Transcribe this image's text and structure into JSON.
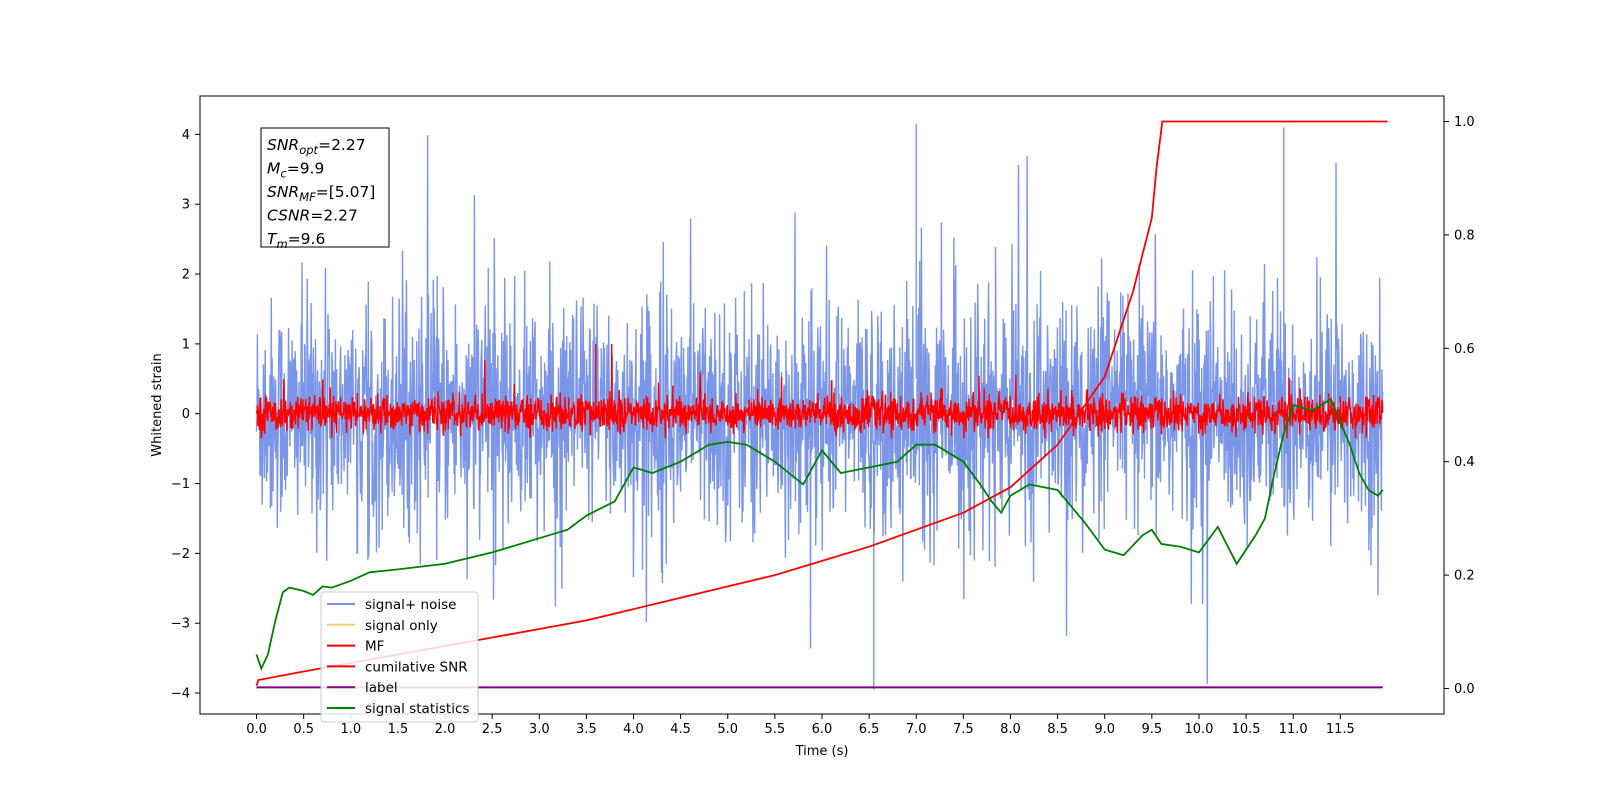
{
  "chart_data": {
    "type": "line",
    "xlabel": "Time (s)",
    "ylabel": "Whitened strain",
    "xlim": [
      -0.6,
      12.6
    ],
    "ylim": [
      -4.3,
      4.55
    ],
    "y2lim": [
      -0.045,
      1.045
    ],
    "x_ticks": [
      "0.0",
      "0.5",
      "1.0",
      "1.5",
      "2.0",
      "2.5",
      "3.0",
      "3.5",
      "4.0",
      "4.5",
      "5.0",
      "5.5",
      "6.0",
      "6.5",
      "7.0",
      "7.5",
      "8.0",
      "8.5",
      "9.0",
      "9.5",
      "10.0",
      "10.5",
      "11.0",
      "11.5"
    ],
    "y_ticks": [
      "4",
      "3",
      "2",
      "1",
      "0",
      "−1",
      "−2",
      "−3",
      "−4"
    ],
    "y2_ticks": [
      "1.0",
      "0.8",
      "0.6",
      "0.4",
      "0.2",
      "0.0"
    ],
    "grid": false,
    "legend_position": "lower-left",
    "colors": {
      "noise": "#7b96e8",
      "signal": "#f5c97a",
      "mf": "#ff0000",
      "csnr": "#ff0000",
      "label": "#800080",
      "stat": "#008000"
    },
    "series": [
      {
        "name": "signal+ noise",
        "style": "noise",
        "center": 0.0,
        "band": [
          -1.2,
          1.2
        ],
        "peaks": [
          -3.95,
          4.2
        ]
      },
      {
        "name": "signal only",
        "style": "signal",
        "values": []
      },
      {
        "name": "MF",
        "style": "mf",
        "center": 0.0,
        "band": [
          -0.3,
          0.4
        ],
        "peaks": [
          -0.35,
          1.0
        ]
      },
      {
        "name": "cumilative SNR",
        "axis": "right",
        "x": [
          0.0,
          0.02,
          0.5,
          1.0,
          1.5,
          2.0,
          2.5,
          3.0,
          3.5,
          4.0,
          4.5,
          5.0,
          5.5,
          6.0,
          6.5,
          7.0,
          7.5,
          8.0,
          8.5,
          9.0,
          9.3,
          9.5,
          9.55,
          9.6,
          9.61,
          12.0
        ],
        "values": [
          0.005,
          0.015,
          0.03,
          0.045,
          0.06,
          0.075,
          0.09,
          0.105,
          0.12,
          0.14,
          0.16,
          0.18,
          0.2,
          0.225,
          0.25,
          0.28,
          0.31,
          0.355,
          0.43,
          0.55,
          0.7,
          0.83,
          0.92,
          0.985,
          1.0,
          1.0
        ]
      },
      {
        "name": "label",
        "axis": "right",
        "x": [
          0.0,
          11.95
        ],
        "values": [
          0.002,
          0.002
        ]
      },
      {
        "name": "signal statistics",
        "axis": "right",
        "x": [
          0.0,
          0.05,
          0.12,
          0.2,
          0.28,
          0.35,
          0.5,
          0.6,
          0.7,
          0.8,
          1.0,
          1.2,
          1.5,
          2.0,
          2.5,
          3.0,
          3.3,
          3.5,
          3.8,
          4.0,
          4.2,
          4.5,
          4.8,
          5.0,
          5.2,
          5.5,
          5.8,
          6.0,
          6.2,
          6.5,
          6.8,
          7.0,
          7.2,
          7.5,
          7.7,
          7.8,
          7.9,
          8.0,
          8.2,
          8.5,
          8.8,
          9.0,
          9.2,
          9.4,
          9.5,
          9.6,
          9.8,
          10.0,
          10.2,
          10.4,
          10.5,
          10.6,
          10.7,
          10.8,
          10.9,
          11.0,
          11.2,
          11.4,
          11.5,
          11.6,
          11.7,
          11.8,
          11.9,
          11.95
        ],
        "values": [
          0.06,
          0.035,
          0.06,
          0.12,
          0.17,
          0.178,
          0.172,
          0.165,
          0.18,
          0.178,
          0.19,
          0.205,
          0.21,
          0.22,
          0.24,
          0.265,
          0.28,
          0.305,
          0.33,
          0.39,
          0.38,
          0.4,
          0.43,
          0.435,
          0.43,
          0.4,
          0.36,
          0.42,
          0.38,
          0.39,
          0.4,
          0.43,
          0.43,
          0.4,
          0.355,
          0.33,
          0.31,
          0.34,
          0.36,
          0.35,
          0.29,
          0.245,
          0.235,
          0.27,
          0.28,
          0.255,
          0.25,
          0.24,
          0.285,
          0.22,
          0.245,
          0.27,
          0.3,
          0.38,
          0.45,
          0.5,
          0.49,
          0.51,
          0.47,
          0.43,
          0.38,
          0.35,
          0.34,
          0.35
        ]
      }
    ],
    "annotation": [
      {
        "sym": "SNR",
        "sub": "opt",
        "rest": "=2.27"
      },
      {
        "sym": "M",
        "sub": "c",
        "rest": "=9.9"
      },
      {
        "sym": "SNR",
        "sub": "MF",
        "rest": "=[5.07]"
      },
      {
        "sym": "CSNR",
        "sub": "",
        "rest": "=2.27"
      },
      {
        "sym": "T",
        "sub": "m",
        "rest": "=9.6"
      }
    ]
  }
}
